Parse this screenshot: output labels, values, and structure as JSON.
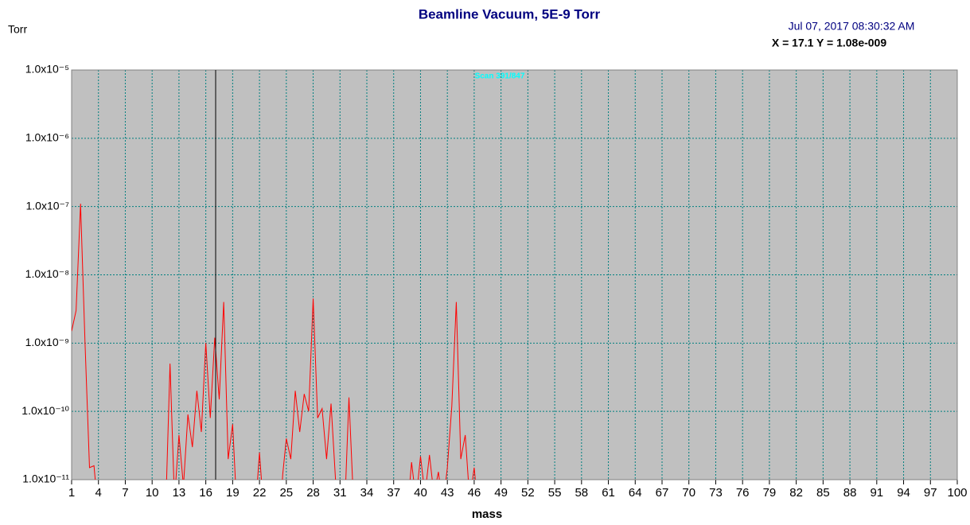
{
  "chart_data": {
    "type": "line",
    "title": "Beamline Vacuum, 5E-9 Torr",
    "timestamp": "Jul 07, 2017  08:30:32 AM",
    "cursor_readout": "X = 17.1 Y = 1.08e-009",
    "cursor_x": 17.1,
    "annotation": "Scan 391/847",
    "y_label": "Torr",
    "x_label": "mass",
    "yscale": "log",
    "grid": true,
    "xlim": [
      1,
      100
    ],
    "ylim": [
      1e-11,
      1e-05
    ],
    "xticks": [
      1,
      4,
      7,
      10,
      13,
      16,
      19,
      22,
      25,
      28,
      31,
      34,
      37,
      40,
      43,
      46,
      49,
      52,
      55,
      58,
      61,
      64,
      67,
      70,
      73,
      76,
      79,
      82,
      85,
      88,
      91,
      94,
      97,
      100
    ],
    "yticks": [
      {
        "value": 1e-11,
        "label": "1.0x10⁻¹¹"
      },
      {
        "value": 1e-10,
        "label": "1.0x10⁻¹⁰"
      },
      {
        "value": 1e-09,
        "label": "1.0x10⁻⁹"
      },
      {
        "value": 1e-08,
        "label": "1.0x10⁻⁸"
      },
      {
        "value": 1e-07,
        "label": "1.0x10⁻⁷"
      },
      {
        "value": 1e-06,
        "label": "1.0x10⁻⁶"
      },
      {
        "value": 1e-05,
        "label": "1.0x10⁻⁵"
      }
    ],
    "series": [
      {
        "color": "#ff0000",
        "x": [
          1,
          1.5,
          2,
          2.5,
          3,
          3.5,
          4,
          11.5,
          12,
          12.5,
          13,
          13.5,
          14,
          14.5,
          15,
          15.5,
          16,
          16.5,
          17,
          17.5,
          18,
          18.5,
          19,
          19.5,
          21.5,
          22,
          22.5,
          24.3,
          24.6,
          25,
          25.5,
          26,
          26.5,
          27,
          27.5,
          28,
          28.5,
          29,
          29.5,
          30,
          30.5,
          31.5,
          32,
          32.5,
          38.5,
          39,
          39.5,
          40,
          40.5,
          41,
          41.5,
          42,
          42.5,
          43,
          43.5,
          44,
          44.5,
          45,
          45.5,
          46,
          46.5
        ],
        "values": [
          1.5e-09,
          3e-09,
          1.1e-07,
          1e-09,
          1.5e-11,
          1.6e-11,
          3e-12,
          3e-12,
          5e-10,
          5e-12,
          4.5e-11,
          8e-12,
          9e-11,
          3e-11,
          2e-10,
          5e-11,
          1e-09,
          8e-11,
          1.2e-09,
          1.5e-10,
          4e-09,
          2e-11,
          6.5e-11,
          3e-12,
          3e-12,
          2.5e-11,
          3e-12,
          3e-12,
          1.2e-11,
          4e-11,
          2e-11,
          2e-10,
          5e-11,
          1.8e-10,
          1e-10,
          4.5e-09,
          8e-11,
          1.1e-10,
          2e-11,
          1.3e-10,
          1e-11,
          3e-12,
          1.6e-10,
          5e-12,
          3e-12,
          1.8e-11,
          5e-12,
          2.2e-11,
          6e-12,
          2.3e-11,
          6e-12,
          1.3e-11,
          4e-12,
          1.5e-11,
          1.2e-10,
          4e-09,
          2e-11,
          4.5e-11,
          5e-12,
          1.5e-11,
          3e-12
        ]
      }
    ]
  }
}
